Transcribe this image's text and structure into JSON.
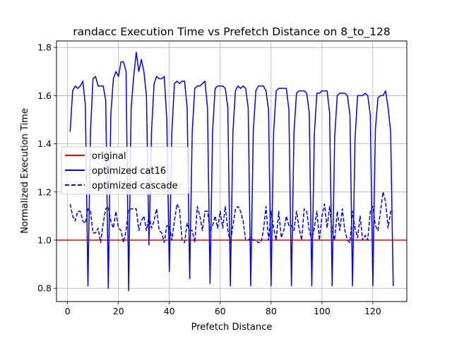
{
  "chart_data": {
    "type": "line",
    "title": "randacc Execution Time vs Prefetch Distance on 8_to_128",
    "xlabel": "Prefetch Distance",
    "ylabel": "Normalized Execution Time",
    "xlim": [
      -4.35,
      133.35
    ],
    "ylim": [
      0.745,
      1.827
    ],
    "xticks": [
      0,
      20,
      40,
      60,
      80,
      100,
      120
    ],
    "yticks": [
      0.8,
      1.0,
      1.2,
      1.4,
      1.6,
      1.8
    ],
    "grid": true,
    "legend": "center-left",
    "series": [
      {
        "name": "original",
        "color": "#ff0000",
        "style": "solid",
        "points": [
          [
            -4.35,
            1.0
          ],
          [
            133.35,
            1.0
          ]
        ]
      },
      {
        "name": "optimized cat16",
        "color": "#0000ff",
        "style": "solid",
        "x": [
          1,
          2,
          3,
          4,
          5,
          6,
          7,
          8,
          9,
          10,
          11,
          12,
          13,
          14,
          15,
          16,
          17,
          18,
          19,
          20,
          21,
          22,
          23,
          24,
          25,
          26,
          27,
          28,
          29,
          30,
          31,
          32,
          33,
          34,
          35,
          36,
          37,
          38,
          39,
          40,
          41,
          42,
          43,
          44,
          45,
          46,
          47,
          48,
          49,
          50,
          51,
          52,
          53,
          54,
          55,
          56,
          57,
          58,
          59,
          60,
          61,
          62,
          63,
          64,
          65,
          66,
          67,
          68,
          69,
          70,
          71,
          72,
          73,
          74,
          75,
          76,
          77,
          78,
          79,
          80,
          81,
          82,
          83,
          84,
          85,
          86,
          87,
          88,
          89,
          90,
          91,
          92,
          93,
          94,
          95,
          96,
          97,
          98,
          99,
          100,
          101,
          102,
          103,
          104,
          105,
          106,
          107,
          108,
          109,
          110,
          111,
          112,
          113,
          114,
          115,
          116,
          117,
          118,
          119,
          120,
          121,
          122,
          123,
          124,
          125,
          126,
          127,
          128
        ],
        "y": [
          1.45,
          1.62,
          1.64,
          1.63,
          1.64,
          1.66,
          1.56,
          0.81,
          1.45,
          1.67,
          1.68,
          1.64,
          1.64,
          1.64,
          1.58,
          0.8,
          1.52,
          1.67,
          1.7,
          1.68,
          1.74,
          1.74,
          1.7,
          0.79,
          1.55,
          1.68,
          1.78,
          1.7,
          1.75,
          1.7,
          1.6,
          0.98,
          1.45,
          1.65,
          1.68,
          1.67,
          1.67,
          1.68,
          1.5,
          0.87,
          1.45,
          1.65,
          1.66,
          1.65,
          1.66,
          1.66,
          1.55,
          0.84,
          1.45,
          1.63,
          1.64,
          1.64,
          1.65,
          1.66,
          1.55,
          0.82,
          1.45,
          1.63,
          1.64,
          1.64,
          1.64,
          1.63,
          1.55,
          0.81,
          1.45,
          1.62,
          1.64,
          1.63,
          1.64,
          1.63,
          1.55,
          0.81,
          1.45,
          1.62,
          1.64,
          1.64,
          1.64,
          1.62,
          1.54,
          0.81,
          1.45,
          1.62,
          1.63,
          1.63,
          1.63,
          1.63,
          1.54,
          0.81,
          1.45,
          1.61,
          1.62,
          1.62,
          1.62,
          1.61,
          1.53,
          0.81,
          1.44,
          1.61,
          1.61,
          1.62,
          1.62,
          1.62,
          1.53,
          0.81,
          1.43,
          1.6,
          1.61,
          1.61,
          1.61,
          1.6,
          1.52,
          0.81,
          1.42,
          1.6,
          1.6,
          1.6,
          1.61,
          1.6,
          1.52,
          0.81,
          1.46,
          1.59,
          1.6,
          1.6,
          1.62,
          1.55,
          1.45,
          0.81
        ]
      },
      {
        "name": "optimized cascade",
        "color": "#0000ff",
        "style": "dashed",
        "x": [
          1,
          2,
          3,
          4,
          5,
          6,
          7,
          8,
          9,
          10,
          11,
          12,
          13,
          14,
          15,
          16,
          17,
          18,
          19,
          20,
          21,
          22,
          23,
          24,
          25,
          26,
          27,
          28,
          29,
          30,
          31,
          32,
          33,
          34,
          35,
          36,
          37,
          38,
          39,
          40,
          41,
          42,
          43,
          44,
          45,
          46,
          47,
          48,
          49,
          50,
          51,
          52,
          53,
          54,
          55,
          56,
          57,
          58,
          59,
          60,
          61,
          62,
          63,
          64,
          65,
          66,
          67,
          68,
          69,
          70,
          71,
          72,
          73,
          74,
          75,
          76,
          77,
          78,
          79,
          80,
          81,
          82,
          83,
          84,
          85,
          86,
          87,
          88,
          89,
          90,
          91,
          92,
          93,
          94,
          95,
          96,
          97,
          98,
          99,
          100,
          101,
          102,
          103,
          104,
          105,
          106,
          107,
          108,
          109,
          110,
          111,
          112,
          113,
          114,
          115,
          116,
          117,
          118,
          119,
          120,
          121,
          122,
          123,
          124,
          125,
          126,
          127,
          128
        ],
        "y": [
          1.15,
          1.1,
          1.08,
          1.12,
          1.12,
          1.08,
          1.07,
          1.13,
          1.12,
          1.03,
          1.03,
          1.05,
          0.99,
          1.07,
          1.13,
          1.14,
          1.08,
          1.05,
          1.12,
          1.05,
          1.04,
          0.99,
          1.04,
          1.13,
          1.13,
          1.13,
          1.13,
          1.04,
          1.08,
          1.1,
          1.04,
          1.1,
          1.05,
          1.08,
          1.13,
          1.04,
          1.03,
          0.99,
          1.06,
          1.06,
          1.0,
          1.08,
          1.15,
          1.13,
          1.0,
          0.99,
          1.07,
          1.04,
          1.04,
          0.99,
          1.14,
          1.1,
          1.04,
          1.12,
          1.12,
          1.04,
          1.06,
          1.1,
          1.05,
          1.12,
          1.05,
          1.14,
          1.04,
          0.99,
          1.06,
          1.13,
          1.14,
          1.12,
          1.08,
          1.0,
          1.0,
          1.01,
          1.0,
          1.0,
          0.99,
          0.99,
          1.04,
          1.14,
          1.0,
          1.12,
          1.05,
          1.0,
          1.12,
          1.01,
          1.04,
          1.1,
          1.06,
          1.06,
          1.04,
          1.12,
          1.05,
          1.0,
          1.13,
          1.12,
          1.04,
          1.0,
          1.05,
          1.12,
          1.0,
          1.1,
          1.15,
          1.05,
          1.14,
          1.04,
          1.0,
          1.12,
          1.04,
          1.13,
          1.04,
          1.0,
          0.99,
          1.12,
          1.05,
          1.01,
          1.1,
          1.0,
          1.02,
          1.0,
          1.12,
          1.14,
          1.06,
          1.04,
          1.12,
          1.2,
          1.16,
          1.05,
          1.12,
          1.12
        ]
      }
    ]
  }
}
